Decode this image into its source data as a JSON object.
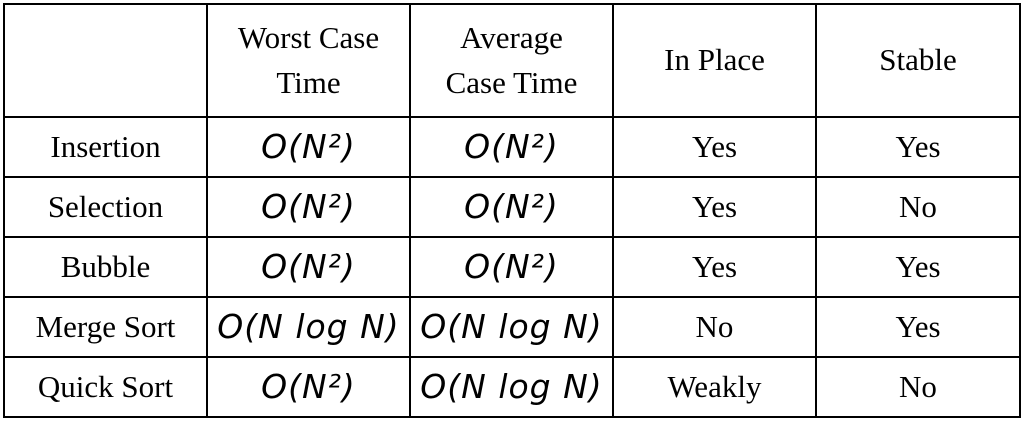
{
  "table": {
    "headers": {
      "blank": "",
      "worst_line1": "Worst Case",
      "worst_line2": "Time",
      "average_line1": "Average",
      "average_line2": "Case Time",
      "in_place": "In Place",
      "stable": "Stable"
    },
    "rows": [
      {
        "name": "Insertion",
        "worst": "O(N²)",
        "average": "O(N²)",
        "in_place": "Yes",
        "stable": "Yes"
      },
      {
        "name": "Selection",
        "worst": "O(N²)",
        "average": "O(N²)",
        "in_place": "Yes",
        "stable": "No"
      },
      {
        "name": "Bubble",
        "worst": "O(N²)",
        "average": "O(N²)",
        "in_place": "Yes",
        "stable": "Yes"
      },
      {
        "name": "Merge Sort",
        "worst": "O(N log N)",
        "average": "O(N log N)",
        "in_place": "No",
        "stable": "Yes"
      },
      {
        "name": "Quick Sort",
        "worst": "O(N²)",
        "average": "O(N log N)",
        "in_place": "Weakly",
        "stable": "No"
      }
    ]
  }
}
